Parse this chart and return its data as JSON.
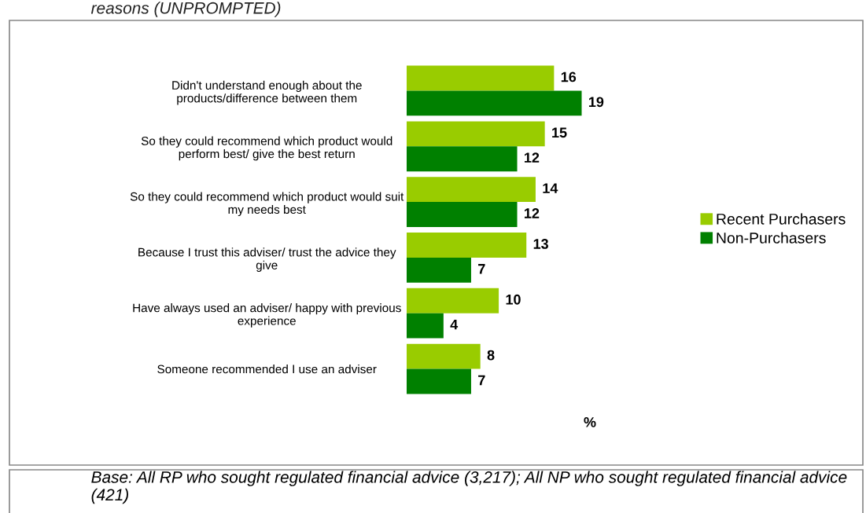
{
  "chart_data": {
    "type": "bar",
    "orientation": "horizontal",
    "title": "reasons (UNPROMPTED)",
    "xlabel": "%",
    "categories": [
      "Didn't understand enough about the\nproducts/difference between them",
      "So they could recommend which product would\nperform best/ give the best return",
      "So they could recommend which product would suit\nmy needs best",
      "Because I trust this adviser/ trust the advice they\ngive",
      "Have always used an adviser/ happy with previous\nexperience",
      "Someone recommended I use an adviser"
    ],
    "series": [
      {
        "name": "Recent Purchasers",
        "color": "#99cc00",
        "values": [
          16,
          15,
          14,
          13,
          10,
          8
        ]
      },
      {
        "name": "Non-Purchasers",
        "color": "#008000",
        "values": [
          19,
          12,
          12,
          7,
          4,
          7
        ]
      }
    ],
    "data_labels": true,
    "legend": "right",
    "grid": false,
    "annotations": [
      "Base: All RP who sought regulated financial advice (3,217); All NP who sought regulated financial advice (421)"
    ]
  }
}
